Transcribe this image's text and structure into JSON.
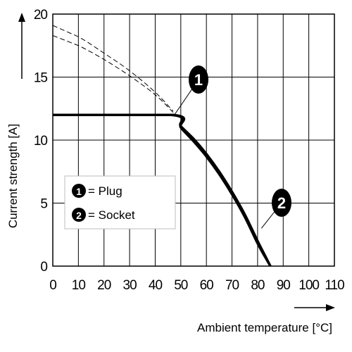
{
  "chart_data": {
    "type": "line",
    "title": "",
    "xlabel": "Ambient temperature [°C]",
    "ylabel": "Current strength [A]",
    "xlim": [
      0,
      110
    ],
    "ylim": [
      0,
      20
    ],
    "x_ticks": [
      "0",
      "10",
      "20",
      "30",
      "40",
      "50",
      "60",
      "70",
      "80",
      "90",
      "100",
      "110"
    ],
    "y_ticks": [
      "0",
      "5",
      "10",
      "15",
      "20"
    ],
    "grid": true,
    "legend_position": "lower-left",
    "legend": [
      {
        "marker": "1",
        "label": "= Plug"
      },
      {
        "marker": "2",
        "label": "= Socket"
      }
    ],
    "series": [
      {
        "name": "Plug",
        "marker": "1",
        "x": [
          0,
          46,
          50,
          55,
          60,
          65,
          70,
          75,
          80,
          83,
          85
        ],
        "y": [
          12,
          12,
          11.1,
          10.1,
          8.9,
          7.5,
          5.9,
          4.1,
          2.0,
          0.8,
          0
        ]
      },
      {
        "name": "Socket",
        "marker": "2",
        "x": [
          0,
          47,
          50,
          55,
          60,
          65,
          70,
          75,
          80,
          83,
          85
        ],
        "y": [
          12,
          12,
          11.0,
          9.9,
          8.7,
          7.3,
          5.7,
          3.9,
          1.8,
          0.7,
          0
        ]
      }
    ],
    "reference_curves": [
      {
        "x": [
          0,
          10,
          20,
          30,
          40,
          47
        ],
        "y": [
          19.1,
          18.2,
          16.9,
          15.5,
          13.8,
          12.3
        ]
      },
      {
        "x": [
          0,
          10,
          20,
          30,
          40,
          47
        ],
        "y": [
          18.3,
          17.5,
          16.4,
          15.1,
          13.6,
          12.2
        ]
      }
    ],
    "annotations": [
      {
        "marker": "1",
        "points_to": {
          "x": 47.5,
          "y": 12
        }
      },
      {
        "marker": "2",
        "points_to": {
          "x": 81.5,
          "y": 3.0
        }
      }
    ]
  }
}
